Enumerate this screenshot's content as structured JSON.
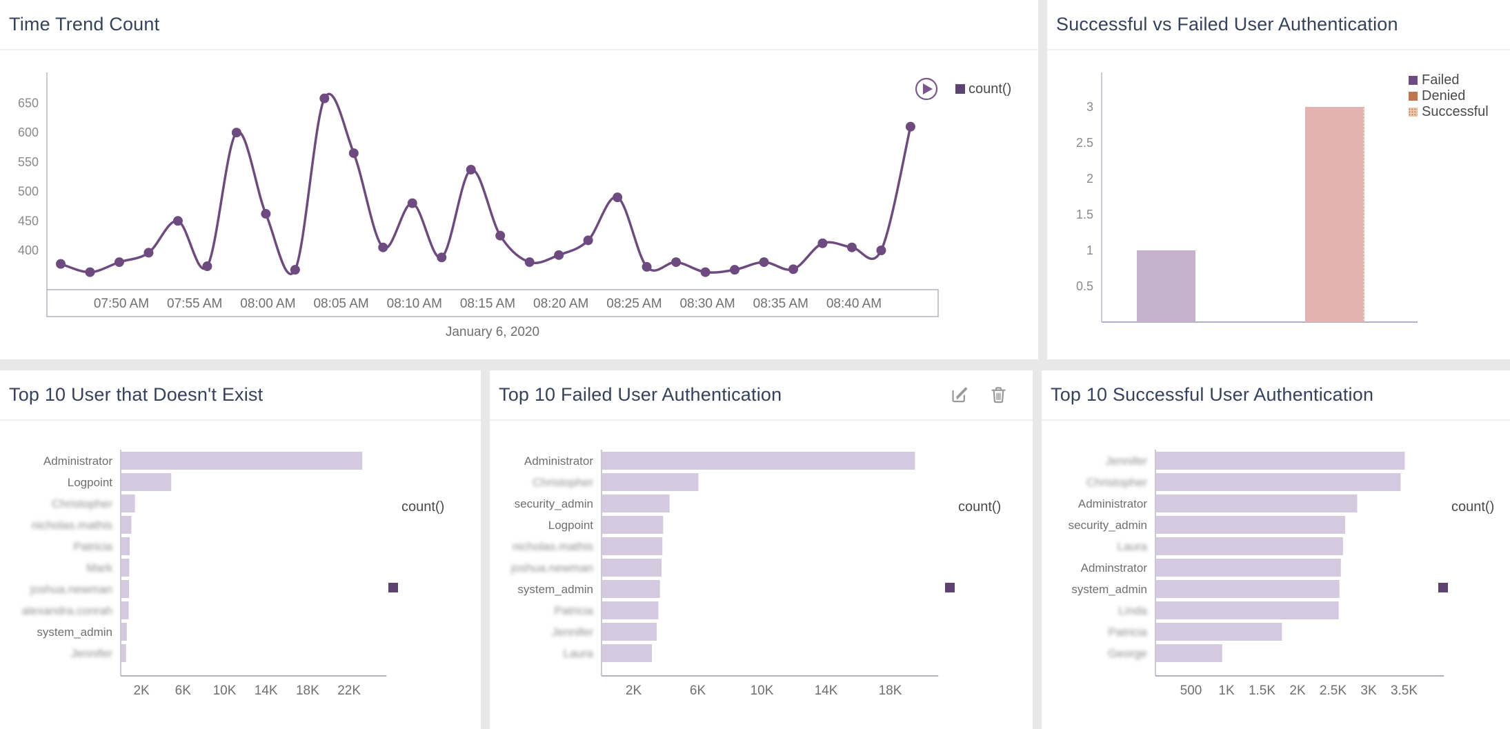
{
  "page": {
    "background": "#e9e8e8",
    "panel_background": "#ffffff",
    "title_color": "#36415e",
    "accent_purple": "#6d4a80",
    "bar_lavender": "#d5c9df",
    "legend_square_color": "#5d4370"
  },
  "chart_data": [
    {
      "id": "time_trend",
      "type": "line",
      "title": "Time Trend Count",
      "legend": [
        "count()"
      ],
      "line_color": "#6d4a80",
      "x_tick_labels": [
        "07:50 AM",
        "07:55 AM",
        "08:00 AM",
        "08:05 AM",
        "08:10 AM",
        "08:15 AM",
        "08:20 AM",
        "08:25 AM",
        "08:30 AM",
        "08:35 AM",
        "08:40 AM"
      ],
      "x_axis_note": "January 6, 2020",
      "y_ticks": [
        "400",
        "450",
        "500",
        "550",
        "600",
        "650"
      ],
      "ylim": [
        340,
        700
      ],
      "x_times": [
        "7:46 AM",
        "7:48 AM",
        "7:50 AM",
        "7:52 AM",
        "7:54 AM",
        "7:56 AM",
        "7:58 AM",
        "8:00 AM",
        "8:02 AM",
        "8:04 AM",
        "8:06 AM",
        "8:08 AM",
        "8:10 AM",
        "8:12 AM",
        "8:14 AM",
        "8:16 AM",
        "8:18 AM",
        "8:20 AM",
        "8:22 AM",
        "8:24 AM",
        "8:26 AM",
        "8:28 AM",
        "8:30 AM",
        "8:32 AM",
        "8:34 AM",
        "8:36 AM",
        "8:38 AM",
        "8:40 AM",
        "8:42 AM",
        "8:44 AM"
      ],
      "values": [
        377,
        363,
        380,
        396,
        450,
        373,
        600,
        462,
        367,
        658,
        565,
        405,
        480,
        388,
        537,
        425,
        380,
        392,
        417,
        490,
        372,
        380,
        363,
        367,
        380,
        368,
        412,
        405,
        400,
        610
      ]
    },
    {
      "id": "auth_compare",
      "type": "bar",
      "title": "Successful vs Failed User Authentication",
      "categories": [
        "Failed",
        "Successful"
      ],
      "values": [
        1,
        3
      ],
      "bar_colors": [
        "#c5b3ce",
        "#e3b3b1"
      ],
      "y_ticks": [
        "0.5",
        "1",
        "1.5",
        "2",
        "2.5",
        "3"
      ],
      "ylim": [
        0,
        3.5
      ],
      "legend": [
        {
          "label": "Failed",
          "color": "#6a4c80",
          "pattern": "solid"
        },
        {
          "label": "Denied",
          "color": "#c0764c",
          "pattern": "solid"
        },
        {
          "label": "Successful",
          "color": "#c0764c",
          "pattern": "dotted"
        }
      ]
    },
    {
      "id": "nonexistent_users",
      "type": "hbar",
      "title": "Top 10 User that Doesn't Exist",
      "legend": [
        "count()"
      ],
      "bar_color": "#d5c9df",
      "categories": [
        "Administrator",
        "Logpoint",
        "Christopher",
        "nicholas.mathis",
        "Patricia",
        "Mark",
        "joshua.newman",
        "alexandra.conrah",
        "system_admin",
        "Jennifer"
      ],
      "blurred": [
        false,
        false,
        true,
        true,
        true,
        true,
        true,
        true,
        false,
        true
      ],
      "values": [
        23200,
        4800,
        1300,
        950,
        800,
        760,
        730,
        700,
        520,
        450
      ],
      "x_ticks": [
        {
          "label": "2K",
          "value": 2000
        },
        {
          "label": "6K",
          "value": 6000
        },
        {
          "label": "10K",
          "value": 10000
        },
        {
          "label": "14K",
          "value": 14000
        },
        {
          "label": "18K",
          "value": 18000
        },
        {
          "label": "22K",
          "value": 22000
        }
      ],
      "xlim": [
        0,
        25600
      ]
    },
    {
      "id": "failed_auth",
      "type": "hbar",
      "title": "Top 10 Failed User Authentication",
      "header_icons": [
        "edit",
        "delete"
      ],
      "legend": [
        "count()"
      ],
      "bar_color": "#d5c9df",
      "categories": [
        "Administrator",
        "Christopher",
        "security_admin",
        "Logpoint",
        "nicholas.mathis",
        "joshua.newman",
        "system_admin",
        "Patricia",
        "Jennifer",
        "Laura"
      ],
      "blurred": [
        false,
        true,
        false,
        false,
        true,
        true,
        false,
        true,
        true,
        true
      ],
      "values": [
        19500,
        6000,
        4200,
        3800,
        3750,
        3700,
        3600,
        3500,
        3400,
        3100
      ],
      "x_ticks": [
        {
          "label": "2K",
          "value": 2000
        },
        {
          "label": "6K",
          "value": 6000
        },
        {
          "label": "10K",
          "value": 10000
        },
        {
          "label": "14K",
          "value": 14000
        },
        {
          "label": "18K",
          "value": 18000
        }
      ],
      "xlim": [
        0,
        21000
      ]
    },
    {
      "id": "successful_auth",
      "type": "hbar",
      "title": "Top 10 Successful User Authentication",
      "legend": [
        "count()"
      ],
      "bar_color": "#d5c9df",
      "categories": [
        "Jennifer",
        "Christopher",
        "Administrator",
        "security_admin",
        "Laura",
        "Adminstrator",
        "system_admin",
        "Linda",
        "Patricia",
        "George"
      ],
      "blurred": [
        true,
        true,
        false,
        false,
        true,
        false,
        false,
        true,
        true,
        true
      ],
      "values": [
        3500,
        3440,
        2830,
        2660,
        2630,
        2600,
        2580,
        2570,
        1770,
        930
      ],
      "x_ticks": [
        {
          "label": "500",
          "value": 500
        },
        {
          "label": "1K",
          "value": 1000
        },
        {
          "label": "1.5K",
          "value": 1500
        },
        {
          "label": "2K",
          "value": 2000
        },
        {
          "label": "2.5K",
          "value": 2500
        },
        {
          "label": "3K",
          "value": 3000
        },
        {
          "label": "3.5K",
          "value": 3500
        }
      ],
      "xlim": [
        0,
        4060
      ]
    }
  ]
}
